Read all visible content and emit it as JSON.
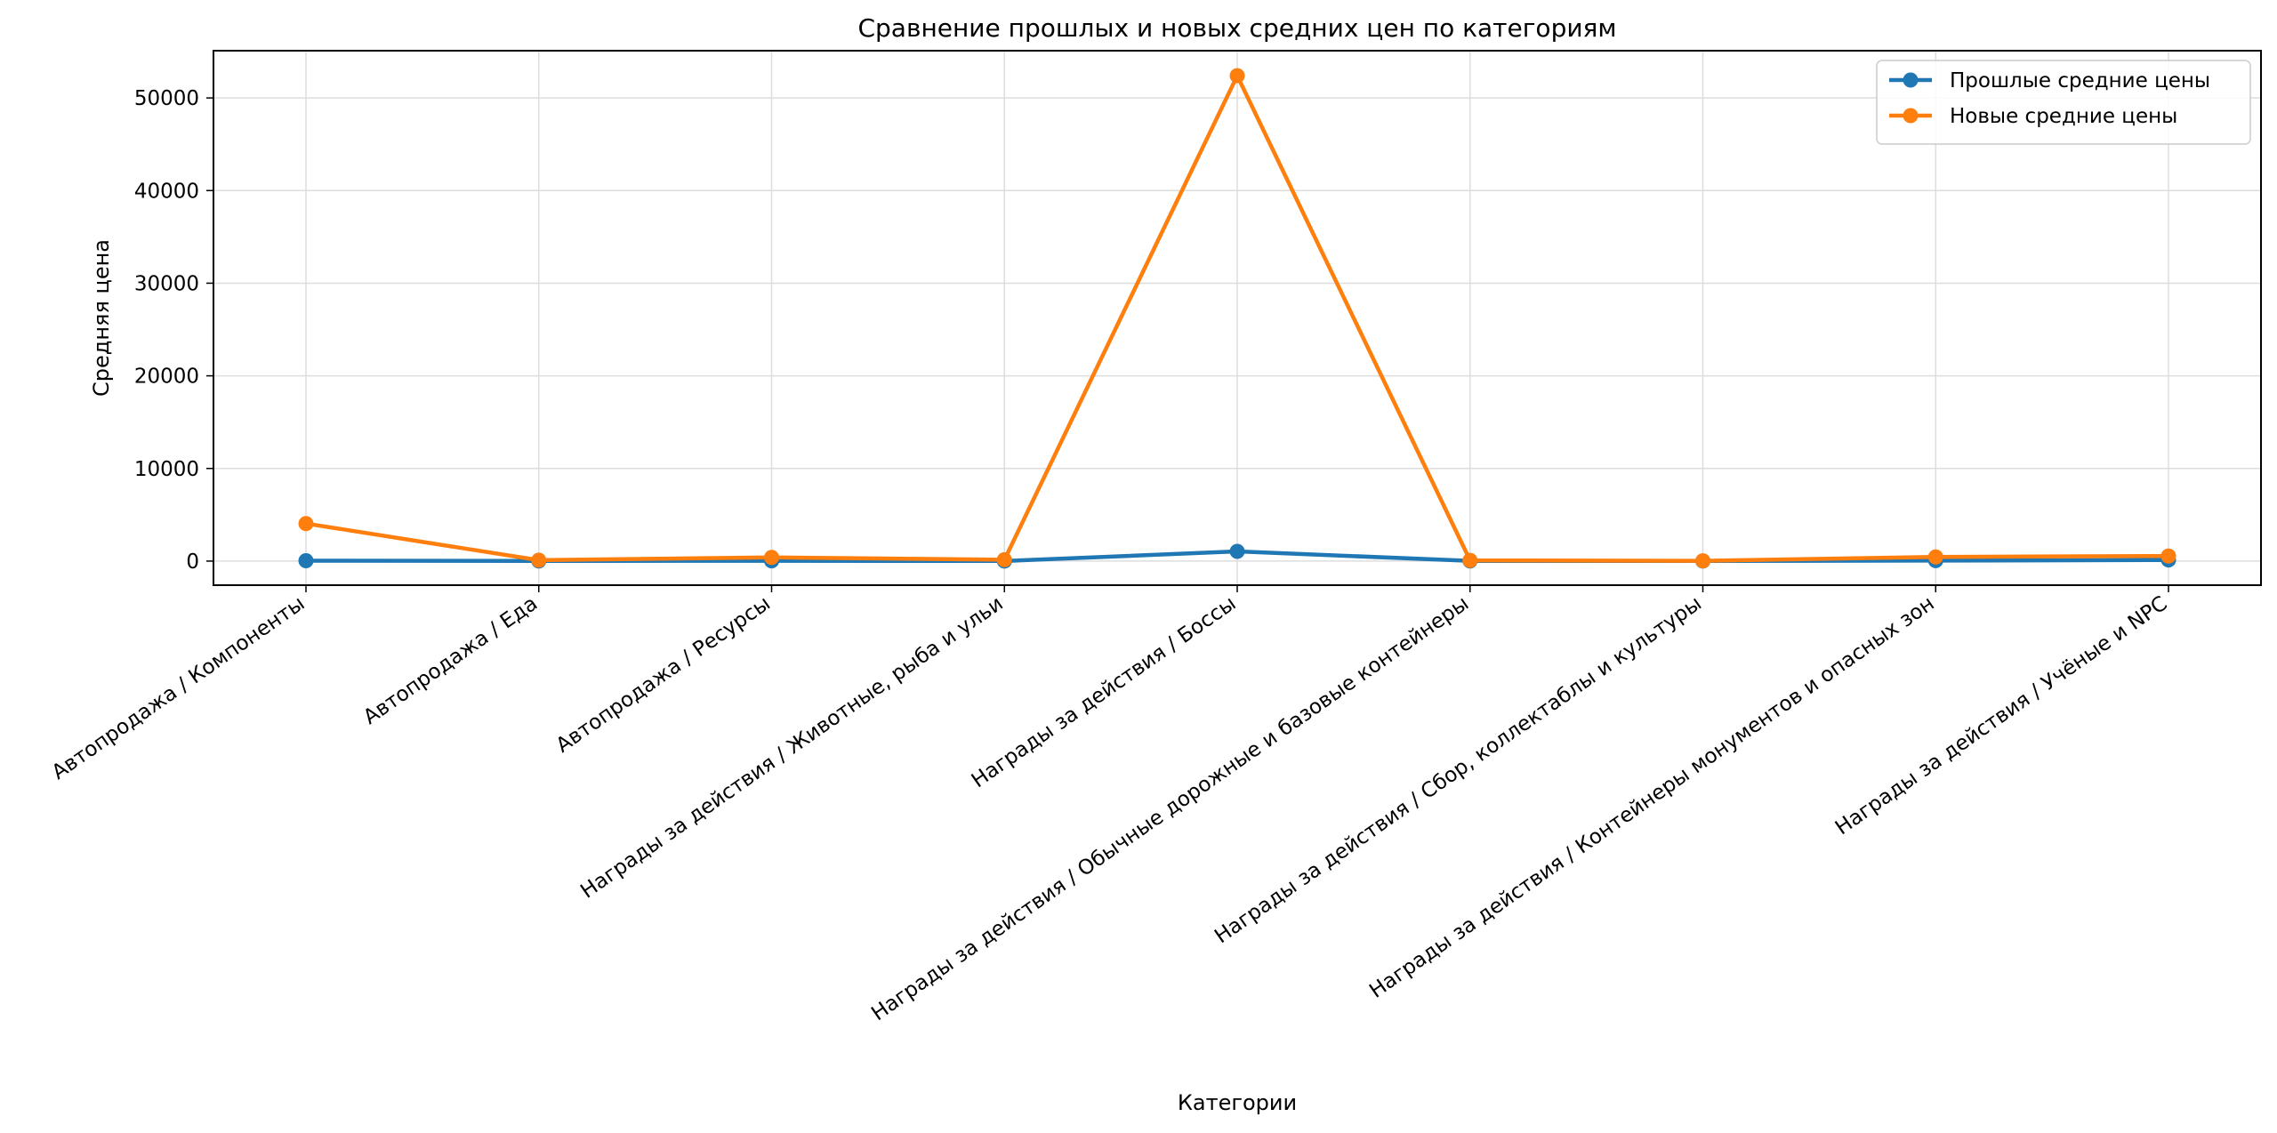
{
  "chart_data": {
    "type": "line",
    "title": "Сравнение прошлых и новых средних цен по категориям",
    "xlabel": "Категории",
    "ylabel": "Средняя цена",
    "categories": [
      "Автопродажа / Компоненты",
      "Автопродажа / Еда",
      "Автопродажа / Ресурсы",
      "Награды за действия / Животные, рыба и ульи",
      "Награды за действия / Боссы",
      "Награды за действия / Обычные дорожные и базовые контейнеры",
      "Награды за действия / Сбор, коллектаблы и культуры",
      "Награды за действия / Контейнеры монументов и опасных зон",
      "Награды за действия / Учёные и NPC"
    ],
    "series": [
      {
        "name": "Прошлые средние цены",
        "color": "#1f77b4",
        "values": [
          40,
          20,
          30,
          10,
          1050,
          20,
          10,
          50,
          120
        ]
      },
      {
        "name": "Новые средние цены",
        "color": "#ff7f0e",
        "values": [
          4050,
          100,
          400,
          150,
          52400,
          80,
          30,
          450,
          550
        ]
      }
    ],
    "ylim": [
      -2600,
      55100
    ],
    "yticks": [
      0,
      10000,
      20000,
      30000,
      40000,
      50000
    ],
    "grid": true,
    "legend_position": "top-right",
    "markers": "circle"
  }
}
